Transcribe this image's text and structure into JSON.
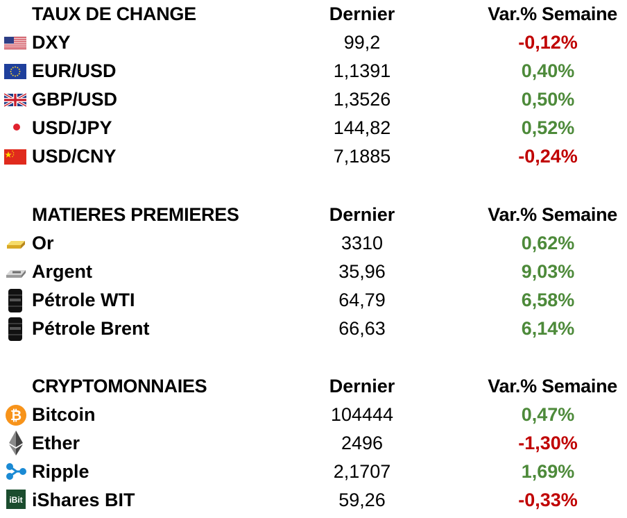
{
  "colors": {
    "positive": "#4d8a3a",
    "negative": "#c00000"
  },
  "sections": [
    {
      "title": "TAUX DE CHANGE",
      "col_last": "Dernier",
      "col_var": "Var.% Semaine",
      "rows": [
        {
          "icon": "flag-us-icon",
          "name": "DXY",
          "last": "99,2",
          "var": "-0,12%",
          "trend": "neg"
        },
        {
          "icon": "flag-eu-icon",
          "name": "EUR/USD",
          "last": "1,1391",
          "var": "0,40%",
          "trend": "pos"
        },
        {
          "icon": "flag-uk-icon",
          "name": "GBP/USD",
          "last": "1,3526",
          "var": "0,50%",
          "trend": "pos"
        },
        {
          "icon": "flag-jp-icon",
          "name": "USD/JPY",
          "last": "144,82",
          "var": "0,52%",
          "trend": "pos"
        },
        {
          "icon": "flag-cn-icon",
          "name": "USD/CNY",
          "last": "7,1885",
          "var": "-0,24%",
          "trend": "neg"
        }
      ]
    },
    {
      "title": "MATIERES PREMIERES",
      "col_last": "Dernier",
      "col_var": "Var.% Semaine",
      "rows": [
        {
          "icon": "gold-bar-icon",
          "name": "Or",
          "last": "3310",
          "var": "0,62%",
          "trend": "pos"
        },
        {
          "icon": "silver-bar-icon",
          "name": "Argent",
          "last": "35,96",
          "var": "9,03%",
          "trend": "pos"
        },
        {
          "icon": "oil-barrel-icon",
          "name": "Pétrole WTI",
          "last": "64,79",
          "var": "6,58%",
          "trend": "pos"
        },
        {
          "icon": "oil-barrel-icon",
          "name": "Pétrole Brent",
          "last": "66,63",
          "var": "6,14%",
          "trend": "pos"
        }
      ]
    },
    {
      "title": "CRYPTOMONNAIES",
      "col_last": "Dernier",
      "col_var": "Var.% Semaine",
      "rows": [
        {
          "icon": "bitcoin-icon",
          "name": "Bitcoin",
          "last": "104444",
          "var": "0,47%",
          "trend": "pos"
        },
        {
          "icon": "ethereum-icon",
          "name": "Ether",
          "last": "2496",
          "var": "-1,30%",
          "trend": "neg"
        },
        {
          "icon": "ripple-icon",
          "name": "Ripple",
          "last": "2,1707",
          "var": "1,69%",
          "trend": "pos"
        },
        {
          "icon": "ishares-bit-icon",
          "name": "iShares BIT",
          "last": "59,26",
          "var": "-0,33%",
          "trend": "neg"
        }
      ]
    }
  ]
}
